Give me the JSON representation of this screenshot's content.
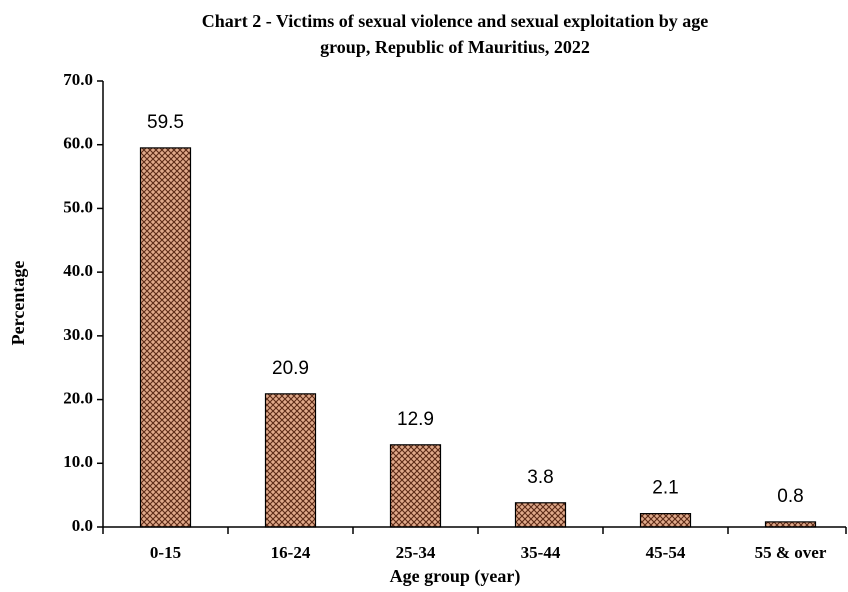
{
  "chart_data": {
    "type": "bar",
    "title": "Chart 2 - Victims of sexual violence and sexual exploitation by age",
    "subtitle": "group, Republic of Mauritius, 2022",
    "x_label": "Age group (year)",
    "y_label": "Percentage",
    "categories": [
      "0-15",
      "16-24",
      "25-34",
      "35-44",
      "45-54",
      "55 & over"
    ],
    "values": [
      59.5,
      20.9,
      12.9,
      3.8,
      2.1,
      0.8
    ],
    "color": "#e0a98a",
    "pattern_color": "#5b2a16",
    "ylim": [
      0,
      70
    ],
    "yticks": [
      {
        "value": 0,
        "label": "0.0"
      },
      {
        "value": 10,
        "label": "10.0"
      },
      {
        "value": 20,
        "label": "20.0"
      },
      {
        "value": 30,
        "label": "30.0"
      },
      {
        "value": 40,
        "label": "40.0"
      },
      {
        "value": 50,
        "label": "50.0"
      },
      {
        "value": 60,
        "label": "60.0"
      },
      {
        "value": 70,
        "label": "70.0"
      }
    ],
    "grid": false
  }
}
